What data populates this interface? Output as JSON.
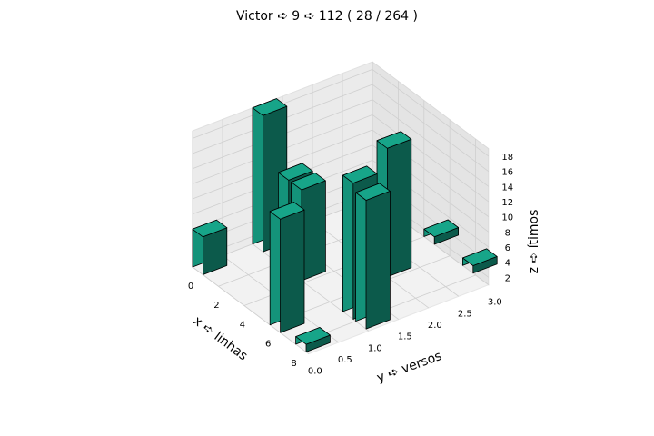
{
  "chart_data": {
    "type": "bar3d",
    "title": "Victor ➪ 9 ➪ 112 ( 28 / 264 )",
    "xlabel": "x ➪ linhas",
    "ylabel": "y ➪ versos",
    "zlabel": "z ➪ ítimos",
    "x_ticks": [
      "0",
      "2",
      "4",
      "6",
      "8"
    ],
    "y_ticks": [
      "0.0",
      "0.5",
      "1.0",
      "1.5",
      "2.0",
      "2.5",
      "3.0"
    ],
    "z_ticks": [
      "2",
      "4",
      "6",
      "8",
      "10",
      "12",
      "14",
      "16",
      "18"
    ],
    "xlim": [
      0,
      9
    ],
    "ylim": [
      0,
      3
    ],
    "zlim": [
      1,
      19
    ],
    "bar_color": "#1abc9c",
    "edge_color": "#000000",
    "bars": [
      {
        "x": 0,
        "y": 0,
        "z": 6
      },
      {
        "x": 0,
        "y": 1,
        "z": 19
      },
      {
        "x": 2,
        "y": 1,
        "z": 13
      },
      {
        "x": 3,
        "y": 1,
        "z": 13
      },
      {
        "x": 4,
        "y": 3,
        "z": 2
      },
      {
        "x": 5,
        "y": 2,
        "z": 18
      },
      {
        "x": 6,
        "y": 0,
        "z": 16
      },
      {
        "x": 7,
        "y": 3,
        "z": 2
      },
      {
        "x": 7,
        "y": 1,
        "z": 19
      },
      {
        "x": 8,
        "y": 0,
        "z": 2
      },
      {
        "x": 8,
        "y": 1,
        "z": 18
      }
    ]
  }
}
